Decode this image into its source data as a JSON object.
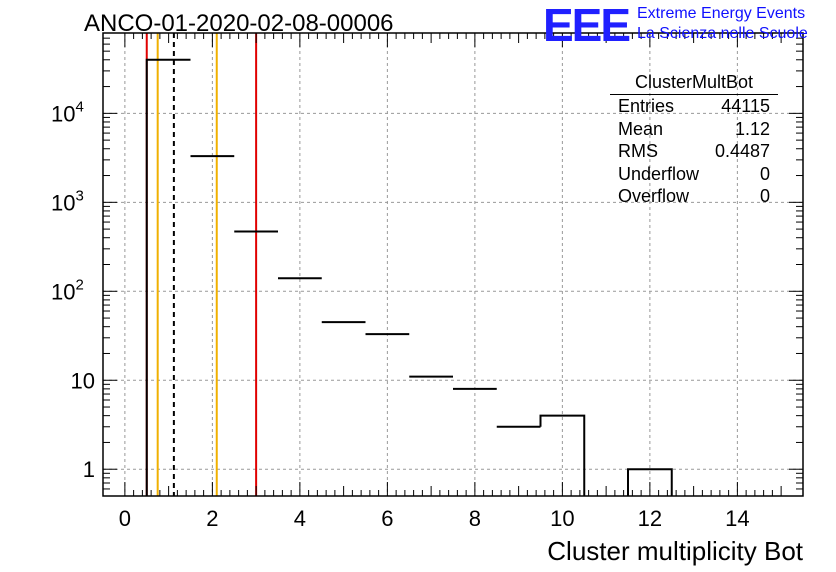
{
  "title": "ANCO-01-2020-02-08-00006",
  "logo": {
    "letters": "EEE",
    "line1": "Extreme Energy Events",
    "line2": "La Scienza nelle Scuole",
    "color": "#1a1aff"
  },
  "stats": {
    "name": "ClusterMultBot",
    "rows": [
      {
        "label": "Entries",
        "value": "44115"
      },
      {
        "label": "Mean",
        "value": "1.12"
      },
      {
        "label": "RMS",
        "value": "0.4487"
      },
      {
        "label": "Underflow",
        "value": "0"
      },
      {
        "label": "Overflow",
        "value": "0"
      }
    ]
  },
  "chart_data": {
    "type": "bar",
    "histogram": "step",
    "xlabel": "Cluster multiplicity Bot",
    "ylabel": "",
    "xlim": [
      -0.5,
      15.5
    ],
    "ylim": [
      0.5,
      80000
    ],
    "yscale": "log",
    "grid": true,
    "x_ticks": [
      "0",
      "2",
      "4",
      "6",
      "8",
      "10",
      "12",
      "14"
    ],
    "y_ticks": [
      "1",
      "10",
      "10^2",
      "10^3",
      "10^4"
    ],
    "bins": [
      {
        "x": 1,
        "value": 40000
      },
      {
        "x": 2,
        "value": 3300
      },
      {
        "x": 3,
        "value": 470
      },
      {
        "x": 4,
        "value": 140
      },
      {
        "x": 5,
        "value": 45
      },
      {
        "x": 6,
        "value": 33
      },
      {
        "x": 7,
        "value": 11
      },
      {
        "x": 8,
        "value": 8
      },
      {
        "x": 9,
        "value": 3
      },
      {
        "x": 10,
        "value": 4
      },
      {
        "x": 11,
        "value": 0
      },
      {
        "x": 12,
        "value": 1
      }
    ],
    "vertical_lines": [
      {
        "x": 0.5,
        "color": "#e00000",
        "style": "solid"
      },
      {
        "x": 0.75,
        "color": "#f0b000",
        "style": "solid"
      },
      {
        "x": 1.12,
        "color": "#000000",
        "style": "dashed"
      },
      {
        "x": 2.1,
        "color": "#f0b000",
        "style": "solid"
      },
      {
        "x": 3.0,
        "color": "#e00000",
        "style": "solid"
      }
    ]
  }
}
